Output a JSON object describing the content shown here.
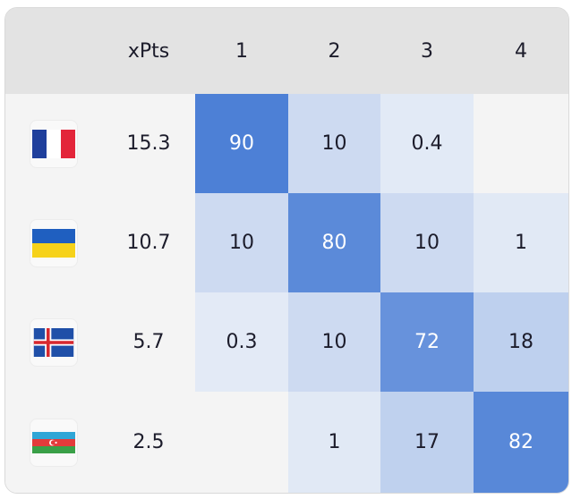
{
  "header": {
    "blank": "",
    "xpts_label": "xPts",
    "positions": [
      "1",
      "2",
      "3",
      "4"
    ]
  },
  "colors": {
    "header_bg": "#e3e3e3",
    "row_bg": "#f4f4f4",
    "heat_scale": {
      "low": "#e4ebf6",
      "high": "#4d80d6"
    }
  },
  "rows": [
    {
      "team_icon": "france-flag-icon",
      "xpts": "15.3",
      "cells": [
        "90",
        "10",
        "0.4",
        ""
      ],
      "probabilities": [
        90,
        10,
        0.4,
        0
      ]
    },
    {
      "team_icon": "ukraine-flag-icon",
      "xpts": "10.7",
      "cells": [
        "10",
        "80",
        "10",
        "1"
      ],
      "probabilities": [
        10,
        80,
        10,
        1
      ]
    },
    {
      "team_icon": "iceland-flag-icon",
      "xpts": "5.7",
      "cells": [
        "0.3",
        "10",
        "72",
        "18"
      ],
      "probabilities": [
        0.3,
        10,
        72,
        18
      ]
    },
    {
      "team_icon": "azerbaijan-flag-icon",
      "xpts": "2.5",
      "cells": [
        "",
        "1",
        "17",
        "82"
      ],
      "probabilities": [
        0,
        1,
        17,
        82
      ]
    }
  ]
}
